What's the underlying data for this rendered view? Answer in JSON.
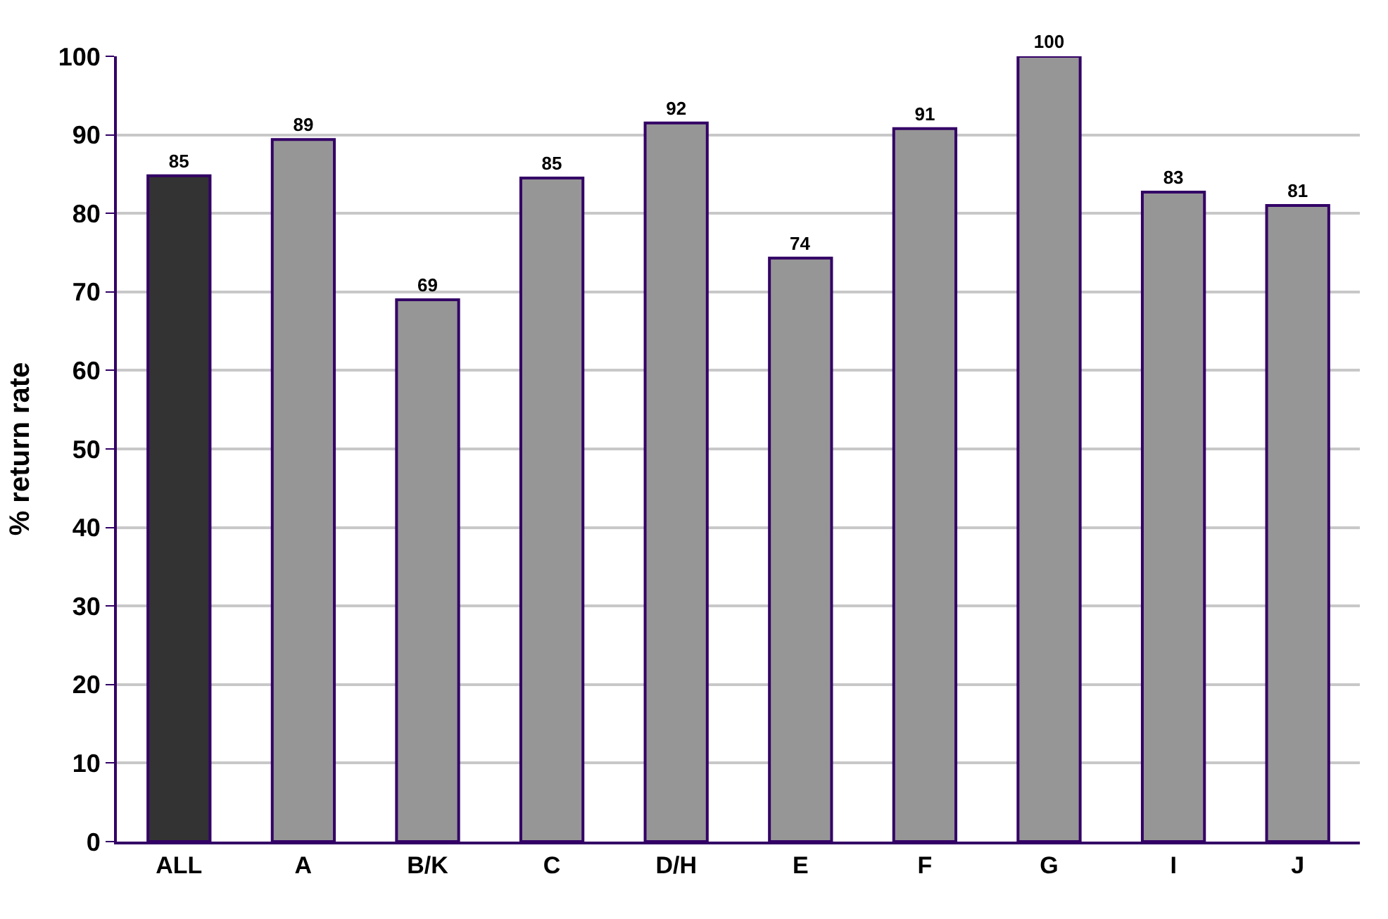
{
  "chart_data": {
    "type": "bar",
    "ylabel": "% return rate",
    "categories": [
      "ALL",
      "A",
      "B/K",
      "C",
      "D/H",
      "E",
      "F",
      "G",
      "I",
      "J"
    ],
    "values": [
      84.8,
      89.4,
      69,
      84.5,
      91.5,
      74.3,
      90.8,
      100,
      82.7,
      81
    ],
    "value_labels": [
      "85",
      "89",
      "69",
      "85",
      "92",
      "74",
      "91",
      "100",
      "83",
      "81"
    ],
    "colors": [
      "#333333",
      "#969696",
      "#969696",
      "#969696",
      "#969696",
      "#969696",
      "#969696",
      "#969696",
      "#969696",
      "#969696"
    ],
    "ylim": [
      0,
      100
    ],
    "yticks": [
      0,
      10,
      20,
      30,
      40,
      50,
      60,
      70,
      80,
      90,
      100
    ],
    "grid": "y"
  }
}
